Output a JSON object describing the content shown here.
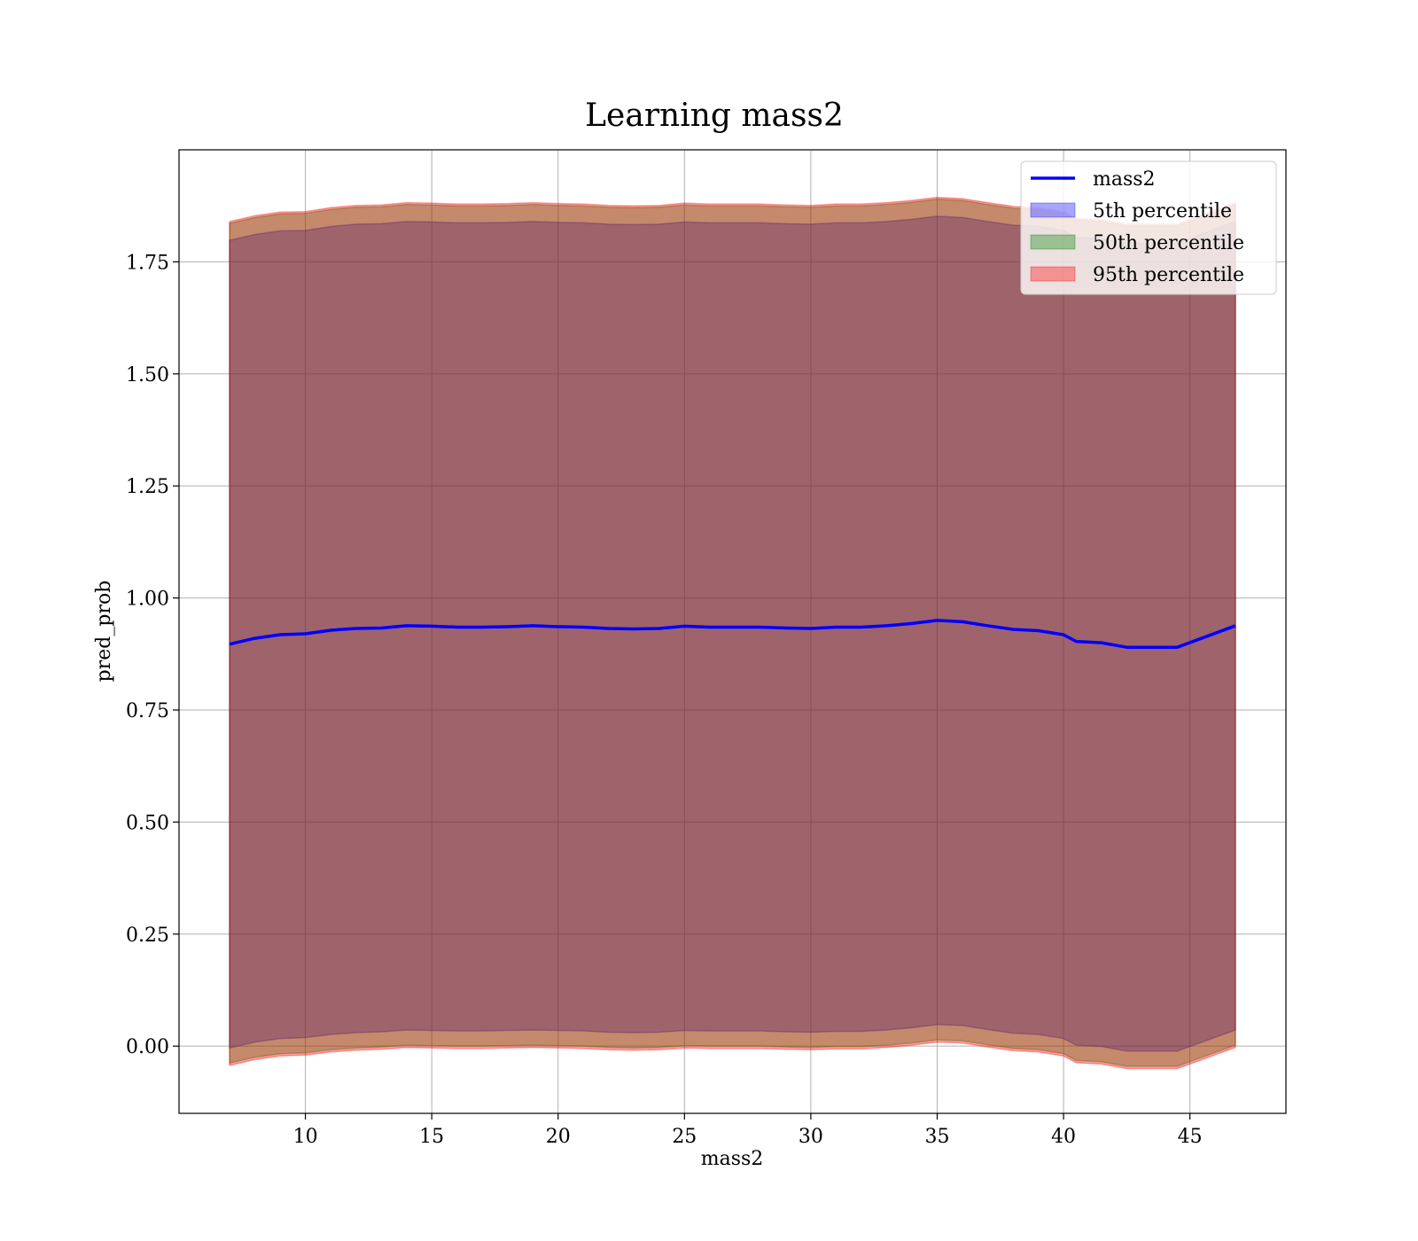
{
  "chart_data": {
    "type": "area",
    "title": "Learning mass2",
    "xlabel": "mass2",
    "ylabel": "pred_prob",
    "xlim": [
      5.0,
      48.8
    ],
    "ylim": [
      -0.15,
      2.0
    ],
    "xticks": [
      10,
      15,
      20,
      25,
      30,
      35,
      40,
      45
    ],
    "yticks": [
      0.0,
      0.25,
      0.5,
      0.75,
      1.0,
      1.25,
      1.5,
      1.75
    ],
    "ytick_labels": [
      "0.00",
      "0.25",
      "0.50",
      "0.75",
      "1.00",
      "1.25",
      "1.50",
      "1.75"
    ],
    "grid": true,
    "legend_position": "top-right",
    "colors": {
      "line": "#0000ff",
      "band_5": "#0000ff",
      "band_50": "#008000",
      "band_95": "#ff0000"
    },
    "x": [
      7.0,
      8.0,
      9.0,
      10.0,
      11.0,
      12.0,
      13.0,
      14.0,
      15.0,
      16.0,
      17.0,
      18.0,
      19.0,
      20.0,
      21.0,
      22.0,
      23.0,
      24.0,
      25.0,
      26.0,
      27.0,
      28.0,
      29.0,
      30.0,
      31.0,
      32.0,
      33.0,
      34.0,
      35.0,
      36.0,
      37.0,
      38.0,
      39.0,
      40.0,
      40.5,
      41.5,
      42.5,
      43.5,
      44.5,
      46.8
    ],
    "series": [
      {
        "name": "mass2",
        "kind": "line",
        "values": [
          0.897,
          0.91,
          0.918,
          0.92,
          0.928,
          0.932,
          0.933,
          0.938,
          0.937,
          0.935,
          0.935,
          0.936,
          0.938,
          0.936,
          0.935,
          0.932,
          0.931,
          0.932,
          0.937,
          0.935,
          0.935,
          0.935,
          0.933,
          0.932,
          0.935,
          0.935,
          0.938,
          0.943,
          0.95,
          0.947,
          0.938,
          0.93,
          0.927,
          0.918,
          0.903,
          0.9,
          0.89,
          0.89,
          0.89,
          0.938
        ]
      },
      {
        "name": "5th percentile",
        "kind": "band",
        "lower": [
          -0.004,
          0.009,
          0.017,
          0.019,
          0.026,
          0.03,
          0.032,
          0.036,
          0.035,
          0.034,
          0.034,
          0.035,
          0.036,
          0.035,
          0.034,
          0.031,
          0.03,
          0.031,
          0.035,
          0.034,
          0.034,
          0.034,
          0.032,
          0.031,
          0.033,
          0.033,
          0.036,
          0.041,
          0.048,
          0.046,
          0.037,
          0.029,
          0.026,
          0.017,
          0.002,
          -0.001,
          -0.011,
          -0.011,
          -0.011,
          0.036
        ],
        "upper": [
          1.798,
          1.811,
          1.819,
          1.82,
          1.829,
          1.834,
          1.835,
          1.84,
          1.839,
          1.837,
          1.837,
          1.838,
          1.84,
          1.838,
          1.837,
          1.834,
          1.833,
          1.834,
          1.839,
          1.837,
          1.837,
          1.837,
          1.835,
          1.834,
          1.837,
          1.837,
          1.84,
          1.845,
          1.852,
          1.849,
          1.84,
          1.832,
          1.829,
          1.82,
          1.805,
          1.802,
          1.792,
          1.792,
          1.792,
          1.84
        ]
      },
      {
        "name": "50th percentile",
        "kind": "band",
        "lower": [
          -0.038,
          -0.025,
          -0.017,
          -0.015,
          -0.008,
          -0.004,
          -0.002,
          0.002,
          0.001,
          0.0,
          0.0,
          0.001,
          0.002,
          0.001,
          0.0,
          -0.003,
          -0.004,
          -0.003,
          0.001,
          0.0,
          0.0,
          0.0,
          -0.002,
          -0.003,
          -0.001,
          -0.001,
          0.002,
          0.007,
          0.014,
          0.012,
          0.003,
          -0.005,
          -0.008,
          -0.017,
          -0.032,
          -0.035,
          -0.045,
          -0.045,
          -0.045,
          0.002
        ],
        "upper": [
          1.836,
          1.849,
          1.857,
          1.858,
          1.867,
          1.872,
          1.873,
          1.878,
          1.877,
          1.875,
          1.875,
          1.876,
          1.878,
          1.876,
          1.875,
          1.872,
          1.871,
          1.872,
          1.877,
          1.875,
          1.875,
          1.875,
          1.873,
          1.872,
          1.875,
          1.875,
          1.878,
          1.883,
          1.89,
          1.887,
          1.878,
          1.87,
          1.867,
          1.858,
          1.843,
          1.84,
          1.83,
          1.83,
          1.83,
          1.878
        ]
      },
      {
        "name": "95th percentile",
        "kind": "band",
        "lower": [
          -0.043,
          -0.03,
          -0.022,
          -0.02,
          -0.013,
          -0.009,
          -0.007,
          -0.003,
          -0.004,
          -0.005,
          -0.005,
          -0.004,
          -0.003,
          -0.004,
          -0.005,
          -0.008,
          -0.009,
          -0.008,
          -0.004,
          -0.005,
          -0.005,
          -0.005,
          -0.007,
          -0.008,
          -0.006,
          -0.006,
          -0.003,
          0.002,
          0.009,
          0.007,
          -0.002,
          -0.01,
          -0.013,
          -0.022,
          -0.037,
          -0.04,
          -0.05,
          -0.05,
          -0.05,
          -0.003
        ],
        "upper": [
          1.84,
          1.853,
          1.861,
          1.862,
          1.871,
          1.876,
          1.877,
          1.882,
          1.881,
          1.879,
          1.879,
          1.88,
          1.882,
          1.88,
          1.879,
          1.876,
          1.875,
          1.876,
          1.881,
          1.879,
          1.879,
          1.879,
          1.877,
          1.876,
          1.879,
          1.879,
          1.882,
          1.887,
          1.894,
          1.891,
          1.882,
          1.874,
          1.871,
          1.862,
          1.847,
          1.844,
          1.834,
          1.834,
          1.834,
          1.882
        ]
      }
    ]
  }
}
